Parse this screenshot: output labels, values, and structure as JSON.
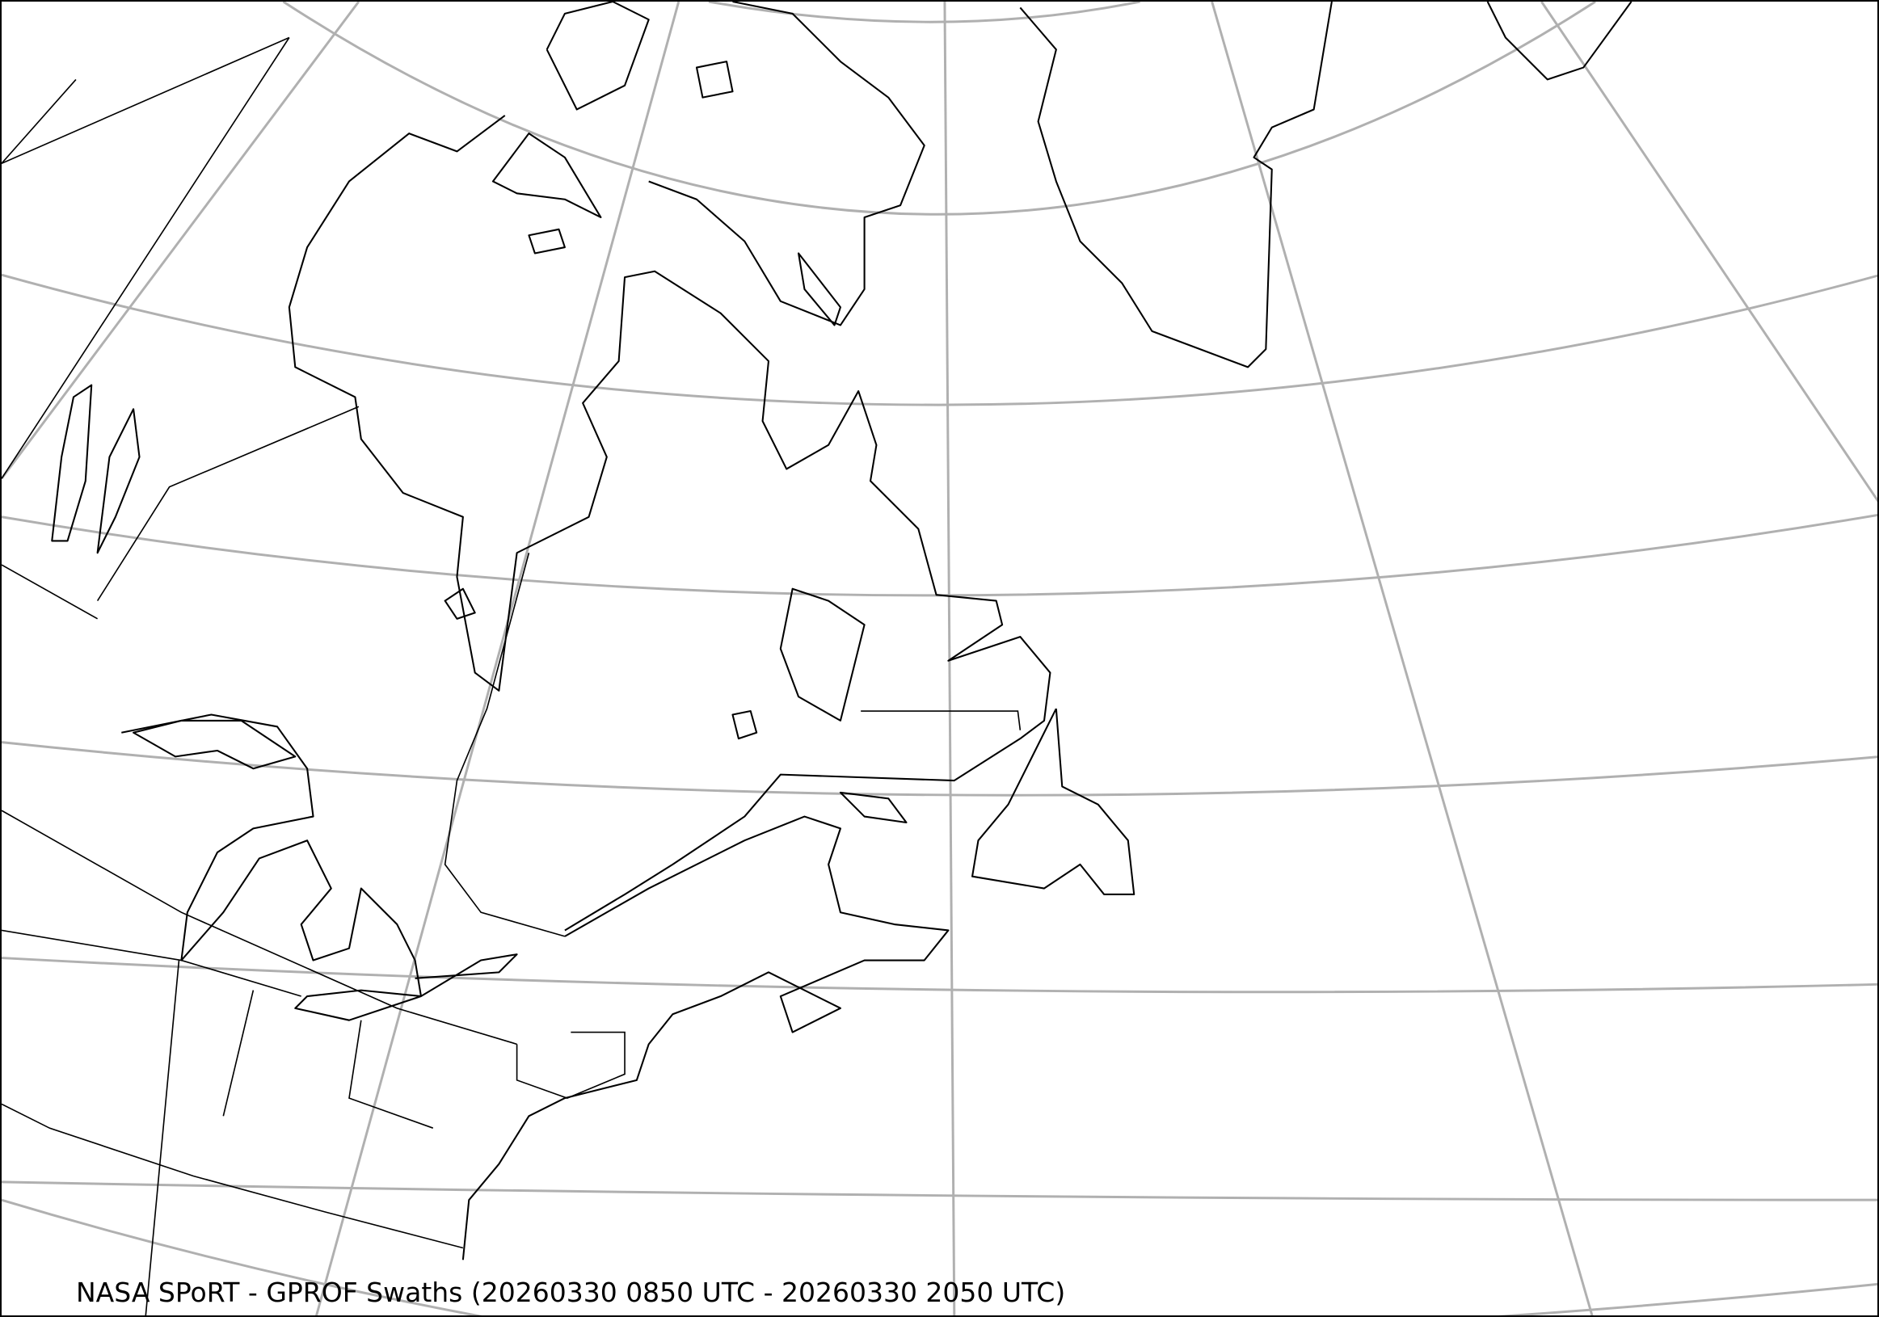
{
  "map": {
    "title": "NASA SPoRT - GPROF Swaths (20260330 0850 UTC - 20260330 2050 UTC)",
    "projection": "lambert-conformal",
    "region": "Northeastern North America, Canada and Greenland",
    "colors": {
      "graticule": "#b0b0b0",
      "coastline": "#000000",
      "background": "#ffffff"
    }
  }
}
